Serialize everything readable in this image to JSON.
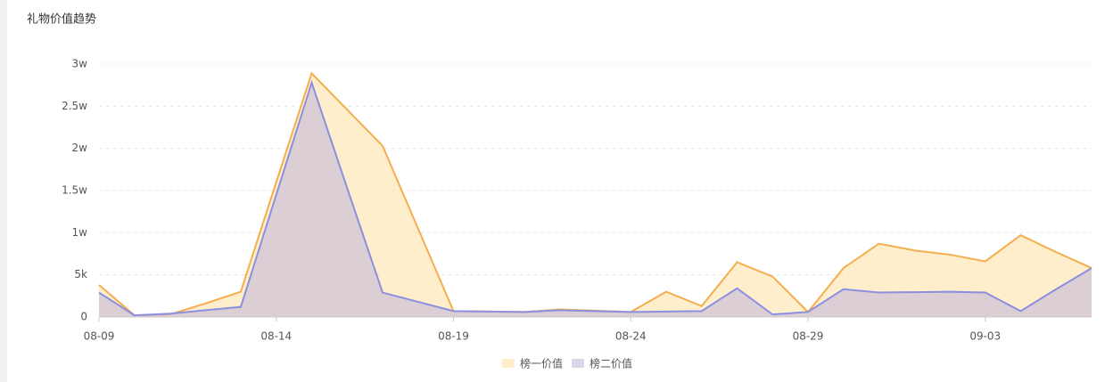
{
  "chart_data": {
    "type": "area",
    "title": "礼物价值趋势",
    "categories": [
      "08-09",
      null,
      null,
      null,
      null,
      "08-14",
      null,
      null,
      null,
      null,
      "08-19",
      null,
      null,
      null,
      null,
      "08-24",
      null,
      null,
      null,
      null,
      "08-29",
      null,
      null,
      null,
      null,
      "09-03",
      null,
      null,
      null
    ],
    "series": [
      {
        "name": "榜一价值",
        "color": "#f5ae4e",
        "values": [
          3800,
          200,
          300,
          1600,
          3000,
          16000,
          28900,
          24600,
          20300,
          10500,
          700,
          650,
          600,
          900,
          750,
          600,
          3000,
          1300,
          6500,
          4800,
          600,
          5800,
          8700,
          7900,
          7400,
          6600,
          9700,
          7700,
          5800
        ]
      },
      {
        "name": "榜二价值",
        "color": "#8b8fe0",
        "values": [
          2900,
          200,
          400,
          800,
          1200,
          14500,
          27800,
          15300,
          2900,
          1800,
          700,
          650,
          600,
          800,
          700,
          600,
          650,
          700,
          3400,
          300,
          600,
          3300,
          2900,
          2950,
          3000,
          2900,
          700,
          3300,
          5800
        ]
      }
    ],
    "ylim": [
      0,
      30000
    ],
    "yticks": [
      0,
      {
        "value": 5000,
        "label": "5k"
      },
      {
        "value": 10000,
        "label": "1w"
      },
      {
        "value": 15000,
        "label": "1.5w"
      },
      {
        "value": 20000,
        "label": "2w"
      },
      {
        "value": 25000,
        "label": "2.5w"
      },
      {
        "value": 30000,
        "label": "3w"
      }
    ],
    "grid": true
  }
}
